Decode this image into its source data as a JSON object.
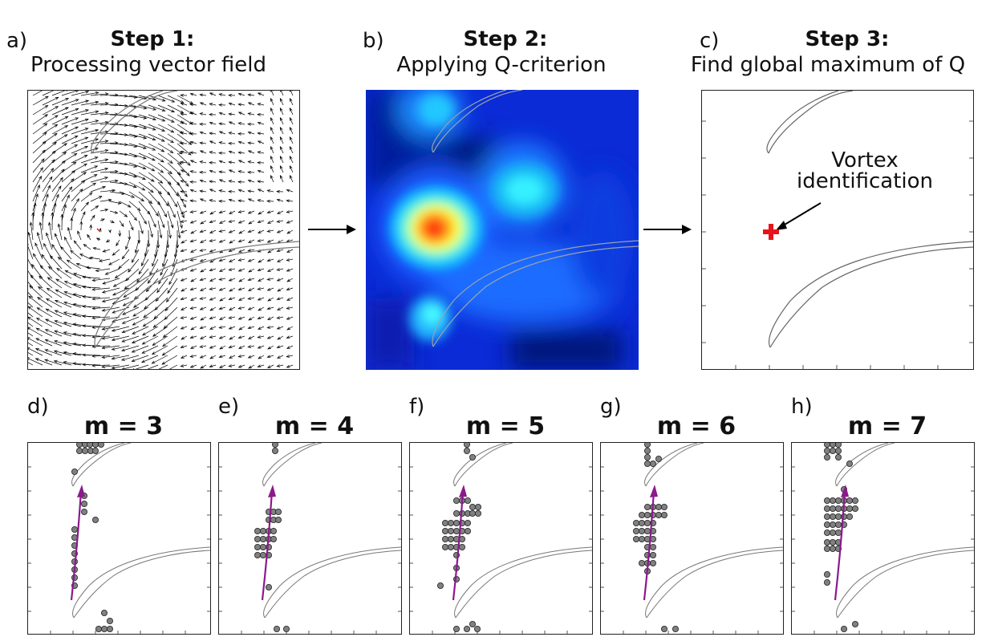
{
  "top_panels": [
    {
      "letter": "a)",
      "title": "Step 1:",
      "subtitle": "Processing vector field"
    },
    {
      "letter": "b)",
      "title": "Step 2:",
      "subtitle": "Applying Q-criterion"
    },
    {
      "letter": "c)",
      "title": "Step 3:",
      "subtitle": "Find global maximum of Q"
    }
  ],
  "annotation": {
    "line1": "Vortex",
    "line2": "identification"
  },
  "bottom_panels": [
    {
      "letter": "d)",
      "title": "m = 3"
    },
    {
      "letter": "e)",
      "title": "m = 4"
    },
    {
      "letter": "f)",
      "title": "m = 5"
    },
    {
      "letter": "g)",
      "title": "m = 6"
    },
    {
      "letter": "h)",
      "title": "m = 7"
    }
  ],
  "colors": {
    "arrow": "#000000",
    "marker": "#e8141a",
    "trajectory": "#8b1a8b",
    "point_fill": "#808080",
    "blade": "#777777"
  },
  "icons": [
    "flow-arrow-icon",
    "vortex-marker-icon"
  ]
}
